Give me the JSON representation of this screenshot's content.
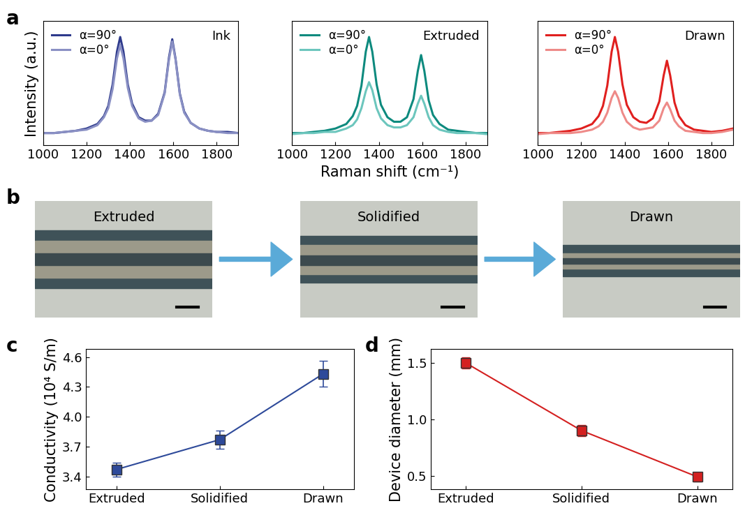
{
  "chart_data": [
    {
      "type": "line",
      "panel_label": "a",
      "y_label": "Intensity (a.u.)",
      "annotation": "Ink",
      "x": [
        1000,
        1050,
        1100,
        1150,
        1200,
        1250,
        1280,
        1300,
        1320,
        1340,
        1355,
        1370,
        1390,
        1410,
        1440,
        1470,
        1500,
        1530,
        1560,
        1580,
        1595,
        1610,
        1630,
        1650,
        1680,
        1720,
        1760,
        1800,
        1850,
        1900
      ],
      "series": [
        {
          "name": "α=90°",
          "color": "#2e3a8c",
          "values": [
            0.11,
            0.11,
            0.12,
            0.13,
            0.15,
            0.19,
            0.26,
            0.35,
            0.54,
            0.83,
            0.96,
            0.83,
            0.54,
            0.37,
            0.25,
            0.22,
            0.22,
            0.28,
            0.47,
            0.78,
            0.94,
            0.77,
            0.46,
            0.3,
            0.2,
            0.15,
            0.13,
            0.12,
            0.12,
            0.11
          ]
        },
        {
          "name": "α=0°",
          "color": "#8a90c4",
          "values": [
            0.11,
            0.11,
            0.12,
            0.13,
            0.14,
            0.18,
            0.25,
            0.33,
            0.5,
            0.77,
            0.89,
            0.77,
            0.51,
            0.35,
            0.24,
            0.21,
            0.22,
            0.27,
            0.46,
            0.76,
            0.92,
            0.76,
            0.45,
            0.29,
            0.2,
            0.15,
            0.13,
            0.12,
            0.11,
            0.11
          ]
        }
      ],
      "xlim": [
        1000,
        1900
      ],
      "xticks": [
        1000,
        1200,
        1400,
        1600,
        1800
      ],
      "ylim": [
        0,
        1.1
      ],
      "legend": "upper left",
      "tick_labels": "x"
    },
    {
      "type": "line",
      "x_label": "Raman shift (cm⁻¹)",
      "annotation": "Extruded",
      "x": [
        1000,
        1050,
        1100,
        1150,
        1200,
        1250,
        1280,
        1300,
        1320,
        1340,
        1355,
        1370,
        1390,
        1410,
        1440,
        1470,
        1500,
        1530,
        1560,
        1580,
        1595,
        1610,
        1630,
        1650,
        1680,
        1720,
        1760,
        1800,
        1850,
        1900
      ],
      "series": [
        {
          "name": "α=90°",
          "color": "#0d8a7e",
          "values": [
            0.11,
            0.11,
            0.12,
            0.13,
            0.15,
            0.19,
            0.26,
            0.35,
            0.53,
            0.83,
            0.96,
            0.83,
            0.54,
            0.36,
            0.25,
            0.21,
            0.21,
            0.25,
            0.41,
            0.66,
            0.8,
            0.66,
            0.4,
            0.27,
            0.19,
            0.14,
            0.13,
            0.12,
            0.11,
            0.11
          ]
        },
        {
          "name": "α=0°",
          "color": "#6cc6bd",
          "values": [
            0.1,
            0.11,
            0.11,
            0.12,
            0.12,
            0.15,
            0.18,
            0.23,
            0.33,
            0.48,
            0.56,
            0.49,
            0.33,
            0.24,
            0.18,
            0.16,
            0.16,
            0.18,
            0.25,
            0.37,
            0.44,
            0.37,
            0.25,
            0.18,
            0.14,
            0.12,
            0.11,
            0.11,
            0.11,
            0.1
          ]
        }
      ],
      "xlim": [
        1000,
        1900
      ],
      "xticks": [
        1000,
        1200,
        1400,
        1600,
        1800
      ],
      "ylim": [
        0,
        1.1
      ],
      "legend": "upper left",
      "tick_labels": "x"
    },
    {
      "type": "line",
      "annotation": "Drawn",
      "x": [
        1000,
        1050,
        1100,
        1150,
        1200,
        1250,
        1280,
        1300,
        1320,
        1340,
        1355,
        1370,
        1390,
        1410,
        1440,
        1470,
        1500,
        1530,
        1560,
        1580,
        1595,
        1610,
        1630,
        1650,
        1680,
        1720,
        1760,
        1800,
        1850,
        1900
      ],
      "series": [
        {
          "name": "α=90°",
          "color": "#e0201f",
          "values": [
            0.11,
            0.11,
            0.12,
            0.13,
            0.15,
            0.19,
            0.26,
            0.35,
            0.53,
            0.83,
            0.96,
            0.83,
            0.54,
            0.36,
            0.25,
            0.21,
            0.2,
            0.24,
            0.39,
            0.62,
            0.75,
            0.62,
            0.38,
            0.26,
            0.18,
            0.14,
            0.13,
            0.12,
            0.13,
            0.15
          ]
        },
        {
          "name": "α=0°",
          "color": "#ee8a88",
          "values": [
            0.1,
            0.11,
            0.11,
            0.11,
            0.12,
            0.14,
            0.17,
            0.21,
            0.29,
            0.42,
            0.48,
            0.42,
            0.29,
            0.21,
            0.16,
            0.14,
            0.15,
            0.16,
            0.22,
            0.33,
            0.38,
            0.32,
            0.22,
            0.17,
            0.13,
            0.12,
            0.11,
            0.11,
            0.12,
            0.14
          ]
        }
      ],
      "xlim": [
        1000,
        1900
      ],
      "xticks": [
        1000,
        1200,
        1400,
        1600,
        1800
      ],
      "ylim": [
        0,
        1.1
      ],
      "legend": "upper left",
      "tick_labels": "x"
    },
    {
      "type": "line",
      "panel_label": "c",
      "y_label": "Conductivity (10⁴ S/m)",
      "marker": "square",
      "color": "#2e4a9a",
      "categories": [
        "Extruded",
        "Solidified",
        "Drawn"
      ],
      "values": [
        3.47,
        3.77,
        4.43
      ],
      "errors": [
        0.07,
        0.09,
        0.13
      ],
      "ylim": [
        3.27,
        4.68
      ],
      "yticks": [
        3.4,
        3.7,
        4.0,
        4.3,
        4.6
      ]
    },
    {
      "type": "line",
      "panel_label": "d",
      "y_label": "Device diameter (mm)",
      "marker": "square",
      "color": "#d42020",
      "categories": [
        "Extruded",
        "Solidified",
        "Drawn"
      ],
      "values": [
        1.5,
        0.9,
        0.49
      ],
      "errors": [
        0.05,
        0.05,
        0.04
      ],
      "ylim": [
        0.38,
        1.62
      ],
      "yticks": [
        0.5,
        1.0,
        1.5
      ]
    }
  ],
  "photos": {
    "panel_label": "b",
    "captions": [
      "Extruded",
      "Solidified",
      "Drawn"
    ]
  }
}
